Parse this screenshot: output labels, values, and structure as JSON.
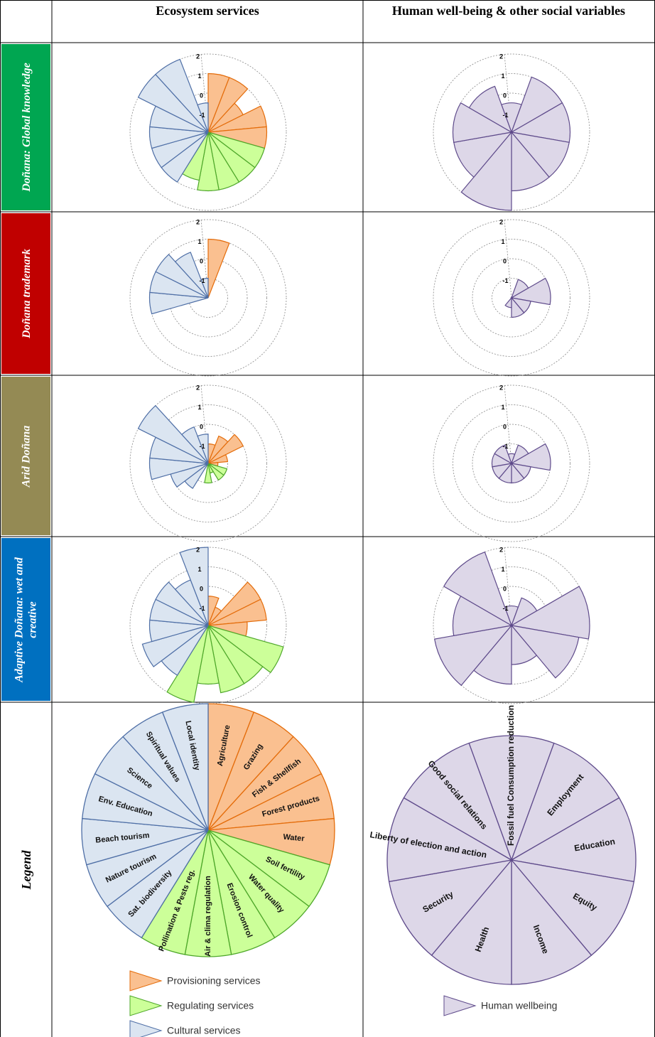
{
  "header": {
    "ecosystem": "Ecosystem services",
    "wellbeing": "Human well-being & other social variables"
  },
  "rows": [
    {
      "label": "Doñana: Global knowledge",
      "color": "#00a651"
    },
    {
      "label": "Doñana trademark",
      "color": "#c00000"
    },
    {
      "label": "Arid Doñana",
      "color": "#948a54"
    },
    {
      "label": "Adaptive Doñana: wet and creative",
      "color": "#0070c0"
    }
  ],
  "legend": {
    "label": "Legend",
    "ecosystem_groups": [
      {
        "name": "Provisioning services",
        "color": "#fac090",
        "stroke": "#e46c0a",
        "categories": [
          "Agriculture",
          "Grazing",
          "Fish & Shellfish",
          "Forest products",
          "Water"
        ]
      },
      {
        "name": "Regulating services",
        "color": "#ccff99",
        "stroke": "#4ea72a",
        "categories": [
          "Soil fertility",
          "Water quality",
          "Erosion control",
          "Air & clima regulation",
          "Pollination & Pests reg."
        ]
      },
      {
        "name": "Cultural services",
        "color": "#dbe5f1",
        "stroke": "#4f6fa6",
        "categories": [
          "Sat. biodiversity",
          "Nature tourism",
          "Beach tourism",
          "Env. Education",
          "Science",
          "Spiritual values",
          "Local identity"
        ]
      }
    ],
    "wellbeing_groups": [
      {
        "name": "Human wellbeing",
        "color": "#ddd7e8",
        "stroke": "#5f4b8b",
        "categories": [
          "Fossil fuel Consumption reduction",
          "Employment",
          "Education",
          "Equity",
          "Income",
          "Health",
          "Security",
          "Liberty of election and action",
          "Good social relations"
        ]
      }
    ]
  },
  "chart_data": [
    {
      "type": "polar_bar",
      "rlim": [
        -2,
        2
      ],
      "rticks": [
        -1,
        0,
        1,
        2
      ],
      "values": [
        1,
        1,
        0,
        1,
        1,
        1,
        1,
        1,
        1,
        0.5,
        1,
        1,
        1,
        1,
        2,
        2,
        -0.5
      ]
    },
    {
      "type": "polar_bar",
      "rlim": [
        -2,
        2
      ],
      "rticks": [
        -1,
        0,
        1,
        2
      ],
      "values": [
        -0.5,
        1,
        1,
        1,
        1,
        2,
        1,
        1,
        0.5
      ]
    },
    {
      "type": "polar_bar",
      "rlim": [
        -2,
        2
      ],
      "rticks": [
        -1,
        0,
        1,
        2
      ],
      "values": [
        1,
        -2,
        -2,
        -2,
        -2,
        -2,
        -2,
        -2,
        -2,
        -2,
        -2,
        -2,
        1,
        1,
        1,
        0.5,
        -1
      ]
    },
    {
      "type": "polar_bar",
      "rlim": [
        -2,
        2
      ],
      "rticks": [
        -1,
        0,
        1,
        2
      ],
      "values": [
        -2,
        -1,
        0,
        -1,
        -1,
        -1.5,
        -2,
        -2,
        -2
      ]
    },
    {
      "type": "polar_bar",
      "rlim": [
        -2,
        2
      ],
      "rticks": [
        -1,
        0,
        1,
        2
      ],
      "values": [
        -1,
        -0.5,
        0,
        -1,
        -1.5,
        -1,
        -1,
        -1.5,
        -1,
        -2,
        -0.5,
        0,
        1,
        1,
        2,
        0,
        -0.5
      ]
    },
    {
      "type": "polar_bar",
      "rlim": [
        -2,
        2
      ],
      "rticks": [
        -1,
        0,
        1,
        2
      ],
      "values": [
        -1.5,
        -1,
        0,
        -1,
        -1,
        -1,
        -1,
        -1,
        -1
      ]
    },
    {
      "type": "polar_bar",
      "rlim": [
        -2,
        2
      ],
      "rticks": [
        -1,
        0,
        1,
        2
      ],
      "values": [
        -0.5,
        -1,
        1,
        1,
        0,
        2,
        1.5,
        1.5,
        1,
        2,
        1,
        1.5,
        1,
        1,
        1,
        0.5,
        2
      ]
    },
    {
      "type": "polar_bar",
      "rlim": [
        -2,
        2
      ],
      "rticks": [
        -1,
        0,
        1,
        2
      ],
      "values": [
        -1,
        -0.5,
        2,
        1.5,
        0,
        1,
        2,
        1,
        2
      ]
    }
  ]
}
